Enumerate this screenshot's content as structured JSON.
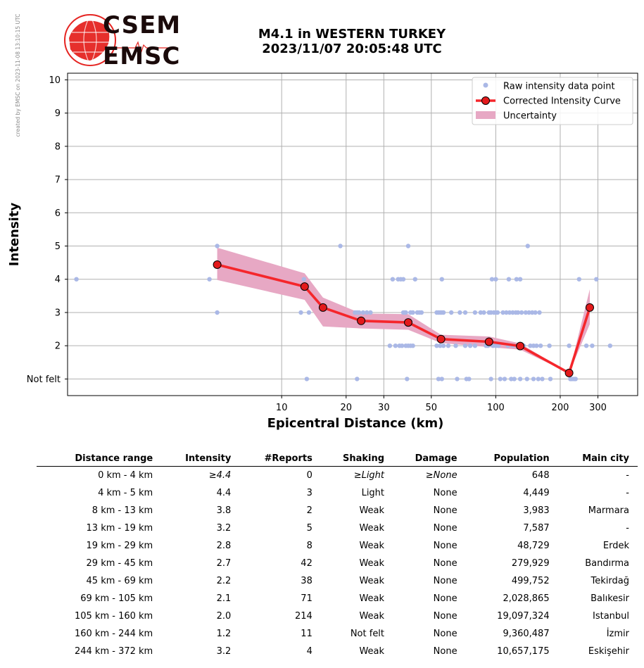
{
  "credit": "created by EMSC on 2023-11-08 13:10:15 UTC",
  "logo": {
    "line1": "CSEM",
    "line2": "EMSC",
    "brand_color": "#e52421"
  },
  "title": {
    "line1": "M4.1 in WESTERN TURKEY",
    "line2": "2023/11/07 20:05:48 UTC"
  },
  "chart_data": {
    "type": "scatter",
    "xlabel": "Epicentral Distance (km)",
    "ylabel": "Intensity",
    "xscale": "log",
    "xlim": [
      1.0,
      460
    ],
    "ylim": [
      0.5,
      10.2
    ],
    "xticks": [
      10,
      20,
      30,
      50,
      100,
      200,
      300
    ],
    "ytick_values": [
      1,
      2,
      3,
      4,
      5,
      6,
      7,
      8,
      9,
      10
    ],
    "ytick_labels": [
      "Not felt",
      "2",
      "3",
      "4",
      "5",
      "6",
      "7",
      "8",
      "9",
      "10"
    ],
    "grid": true,
    "legend_position": "top-right",
    "legend": [
      "Raw intensity data point",
      "Corrected Intensity Curve",
      "Uncertainty"
    ],
    "colors": {
      "raw": "#aab8e6",
      "curve": "#f5262b",
      "marker": "#e31a1c",
      "uncertainty": "#e7a8c4"
    },
    "raw_points": [
      [
        1.1,
        4
      ],
      [
        4.6,
        4
      ],
      [
        5.0,
        5
      ],
      [
        5.0,
        3
      ],
      [
        12.3,
        3
      ],
      [
        12.7,
        4
      ],
      [
        13.1,
        1
      ],
      [
        13.4,
        3
      ],
      [
        18.8,
        5
      ],
      [
        22,
        3
      ],
      [
        22.5,
        3
      ],
      [
        23,
        3
      ],
      [
        22.5,
        1
      ],
      [
        24,
        3
      ],
      [
        25,
        3
      ],
      [
        26,
        3
      ],
      [
        32,
        2
      ],
      [
        33,
        4
      ],
      [
        34,
        2
      ],
      [
        35,
        4
      ],
      [
        35.5,
        2
      ],
      [
        36,
        4
      ],
      [
        36.5,
        2
      ],
      [
        37,
        3
      ],
      [
        37.5,
        3
      ],
      [
        37,
        4
      ],
      [
        38,
        3
      ],
      [
        38,
        2
      ],
      [
        38.5,
        1
      ],
      [
        39,
        5
      ],
      [
        39,
        2
      ],
      [
        40,
        3
      ],
      [
        40,
        2
      ],
      [
        41,
        3
      ],
      [
        41,
        2
      ],
      [
        42,
        4
      ],
      [
        43,
        3
      ],
      [
        44,
        3
      ],
      [
        45,
        3
      ],
      [
        53,
        3
      ],
      [
        53,
        2
      ],
      [
        54,
        3
      ],
      [
        54,
        1
      ],
      [
        55,
        3
      ],
      [
        55,
        2
      ],
      [
        56,
        4
      ],
      [
        56,
        3
      ],
      [
        56,
        1
      ],
      [
        57,
        3
      ],
      [
        57,
        2
      ],
      [
        60,
        2
      ],
      [
        62,
        3
      ],
      [
        65,
        2
      ],
      [
        66,
        1
      ],
      [
        68,
        3
      ],
      [
        72,
        3
      ],
      [
        72,
        2
      ],
      [
        73,
        1
      ],
      [
        75,
        1
      ],
      [
        76,
        2
      ],
      [
        80,
        3
      ],
      [
        80,
        2
      ],
      [
        85,
        3
      ],
      [
        88,
        3
      ],
      [
        90,
        2
      ],
      [
        92,
        2
      ],
      [
        93,
        3
      ],
      [
        95,
        3
      ],
      [
        95,
        1
      ],
      [
        96,
        4
      ],
      [
        97,
        2
      ],
      [
        98,
        3
      ],
      [
        100,
        4
      ],
      [
        100,
        3
      ],
      [
        100,
        2
      ],
      [
        102,
        3
      ],
      [
        103,
        2
      ],
      [
        105,
        1
      ],
      [
        108,
        3
      ],
      [
        110,
        1
      ],
      [
        112,
        3
      ],
      [
        114,
        2
      ],
      [
        115,
        4
      ],
      [
        116,
        3
      ],
      [
        118,
        1
      ],
      [
        120,
        3
      ],
      [
        120,
        2
      ],
      [
        122,
        1
      ],
      [
        124,
        3
      ],
      [
        125,
        4
      ],
      [
        127,
        3
      ],
      [
        128,
        2
      ],
      [
        130,
        4
      ],
      [
        130,
        1
      ],
      [
        132,
        3
      ],
      [
        135,
        2
      ],
      [
        138,
        3
      ],
      [
        140,
        1
      ],
      [
        141,
        5
      ],
      [
        143,
        3
      ],
      [
        145,
        2
      ],
      [
        148,
        3
      ],
      [
        150,
        2
      ],
      [
        150,
        1
      ],
      [
        153,
        3
      ],
      [
        155,
        2
      ],
      [
        158,
        1
      ],
      [
        160,
        3
      ],
      [
        162,
        2
      ],
      [
        165,
        1
      ],
      [
        178,
        2
      ],
      [
        180,
        1
      ],
      [
        220,
        2
      ],
      [
        223,
        1
      ],
      [
        227,
        1
      ],
      [
        232,
        1
      ],
      [
        236,
        1
      ],
      [
        245,
        4
      ],
      [
        265,
        2
      ],
      [
        282,
        2
      ],
      [
        295,
        4
      ],
      [
        342,
        2
      ]
    ],
    "curve": {
      "x": [
        5.0,
        12.8,
        15.6,
        23.5,
        39.0,
        55.5,
        93.0,
        130.0,
        220.0,
        275.0
      ],
      "y": [
        4.44,
        3.78,
        3.15,
        2.75,
        2.7,
        2.2,
        2.12,
        1.99,
        1.18,
        3.15
      ]
    },
    "uncertainty": {
      "upper": [
        [
          5.0,
          4.95
        ],
        [
          12.8,
          4.18
        ],
        [
          15.6,
          3.45
        ],
        [
          23.5,
          2.97
        ],
        [
          39.0,
          2.95
        ],
        [
          55.5,
          2.33
        ],
        [
          93.0,
          2.28
        ],
        [
          130.0,
          2.07
        ],
        [
          220.0,
          1.18
        ],
        [
          275.0,
          3.7
        ]
      ],
      "lower": [
        [
          275.0,
          2.65
        ],
        [
          220.0,
          1.18
        ],
        [
          130.0,
          1.88
        ],
        [
          93.0,
          1.96
        ],
        [
          55.5,
          2.08
        ],
        [
          39.0,
          2.48
        ],
        [
          23.5,
          2.52
        ],
        [
          15.6,
          2.58
        ],
        [
          12.8,
          3.38
        ],
        [
          5.0,
          3.98
        ]
      ]
    }
  },
  "table": {
    "headers": [
      "Distance range",
      "Intensity",
      "#Reports",
      "Shaking",
      "Damage",
      "Population",
      "Main city"
    ],
    "rows": [
      [
        "0 km -    4 km",
        "≥4.4",
        "0",
        "≥Light",
        "≥None",
        "648",
        "-"
      ],
      [
        "4 km -    5 km",
        "4.4",
        "3",
        "Light",
        "None",
        "4,449",
        "-"
      ],
      [
        "8 km -   13 km",
        "3.8",
        "2",
        "Weak",
        "None",
        "3,983",
        "Marmara"
      ],
      [
        "13 km -   19 km",
        "3.2",
        "5",
        "Weak",
        "None",
        "7,587",
        "-"
      ],
      [
        "19 km -   29 km",
        "2.8",
        "8",
        "Weak",
        "None",
        "48,729",
        "Erdek"
      ],
      [
        "29 km -   45 km",
        "2.7",
        "42",
        "Weak",
        "None",
        "279,929",
        "Bandırma"
      ],
      [
        "45 km -   69 km",
        "2.2",
        "38",
        "Weak",
        "None",
        "499,752",
        "Tekirdağ"
      ],
      [
        "69 km -  105 km",
        "2.1",
        "71",
        "Weak",
        "None",
        "2,028,865",
        "Balıkesir"
      ],
      [
        "105 km -  160 km",
        "2.0",
        "214",
        "Weak",
        "None",
        "19,097,324",
        "Istanbul"
      ],
      [
        "160 km -  244 km",
        "1.2",
        "11",
        "Not felt",
        "None",
        "9,360,487",
        "İzmir"
      ],
      [
        "244 km -  372 km",
        "3.2",
        "4",
        "Weak",
        "None",
        "10,657,175",
        "Eskişehir"
      ]
    ]
  }
}
